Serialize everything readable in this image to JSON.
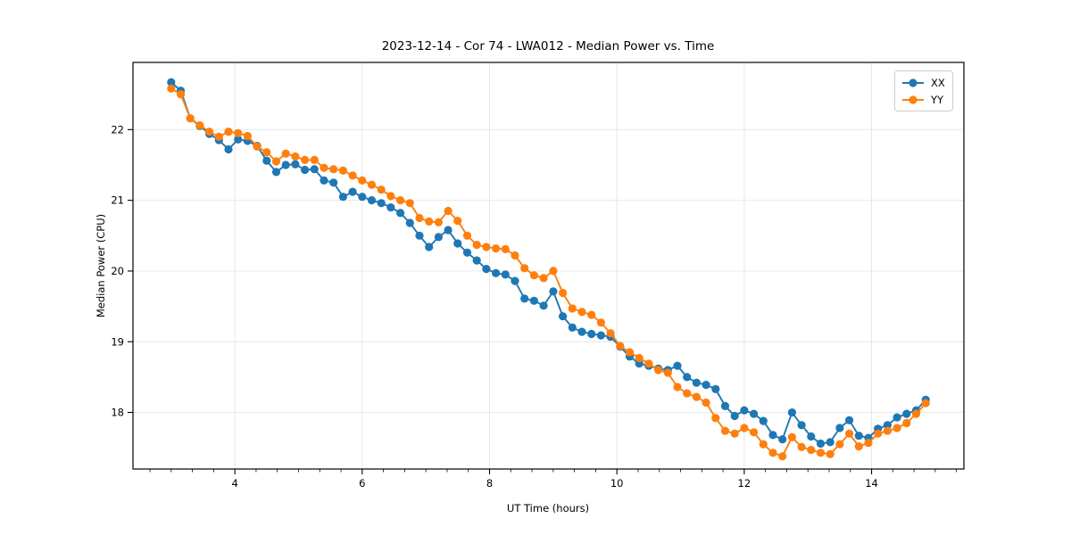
{
  "figure": {
    "background": "#ffffff",
    "grid_color": "#e5e5e5",
    "spine_color": "#000000",
    "tick_color": "#000000"
  },
  "chart_data": {
    "type": "line",
    "title": "2023-12-14 - Cor 74 - LWA012 - Median Power vs. Time",
    "xlabel": "UT Time (hours)",
    "ylabel": "Median Power (CPU)",
    "xlim": [
      2.4,
      15.45
    ],
    "ylim": [
      17.2,
      22.95
    ],
    "x_ticks": [
      4,
      6,
      8,
      10,
      12,
      14
    ],
    "x_minor_tick_step": 0.33333,
    "y_ticks": [
      18,
      19,
      20,
      21,
      22
    ],
    "grid": true,
    "legend_position": "upper right",
    "marker": "circle",
    "x_start": 3.0,
    "x_step": 0.15,
    "series": [
      {
        "name": "XX",
        "color": "#1f77b4",
        "values": [
          22.67,
          22.55,
          22.16,
          22.05,
          21.94,
          21.85,
          21.72,
          21.86,
          21.84,
          21.77,
          21.56,
          21.4,
          21.5,
          21.51,
          21.43,
          21.44,
          21.28,
          21.25,
          21.05,
          21.12,
          21.05,
          21.0,
          20.96,
          20.9,
          20.82,
          20.68,
          20.5,
          20.34,
          20.48,
          20.58,
          20.39,
          20.26,
          20.15,
          20.03,
          19.97,
          19.95,
          19.86,
          19.61,
          19.58,
          19.51,
          19.71,
          19.36,
          19.2,
          19.14,
          19.11,
          19.09,
          19.07,
          18.93,
          18.79,
          18.69,
          18.66,
          18.62,
          18.6,
          18.66,
          18.5,
          18.42,
          18.39,
          18.33,
          18.09,
          17.95,
          18.03,
          17.98,
          17.88,
          17.68,
          17.62,
          18.0,
          17.82,
          17.66,
          17.56,
          17.58,
          17.78,
          17.89,
          17.67,
          17.64,
          17.77,
          17.82,
          17.93,
          17.98,
          18.03,
          18.18
        ]
      },
      {
        "name": "YY",
        "color": "#ff7f0e",
        "values": [
          22.58,
          22.5,
          22.16,
          22.06,
          21.97,
          21.9,
          21.97,
          21.95,
          21.91,
          21.76,
          21.68,
          21.55,
          21.66,
          21.62,
          21.57,
          21.57,
          21.46,
          21.44,
          21.42,
          21.35,
          21.28,
          21.22,
          21.15,
          21.06,
          21.0,
          20.96,
          20.75,
          20.7,
          20.69,
          20.85,
          20.71,
          20.5,
          20.37,
          20.34,
          20.32,
          20.31,
          20.22,
          20.04,
          19.94,
          19.9,
          20.0,
          19.69,
          19.47,
          19.42,
          19.38,
          19.27,
          19.12,
          18.94,
          18.85,
          18.77,
          18.69,
          18.6,
          18.56,
          18.36,
          18.27,
          18.22,
          18.14,
          17.92,
          17.74,
          17.7,
          17.78,
          17.72,
          17.55,
          17.43,
          17.38,
          17.65,
          17.51,
          17.47,
          17.43,
          17.41,
          17.55,
          17.7,
          17.52,
          17.57,
          17.7,
          17.74,
          17.78,
          17.85,
          17.98,
          18.13
        ]
      }
    ]
  }
}
